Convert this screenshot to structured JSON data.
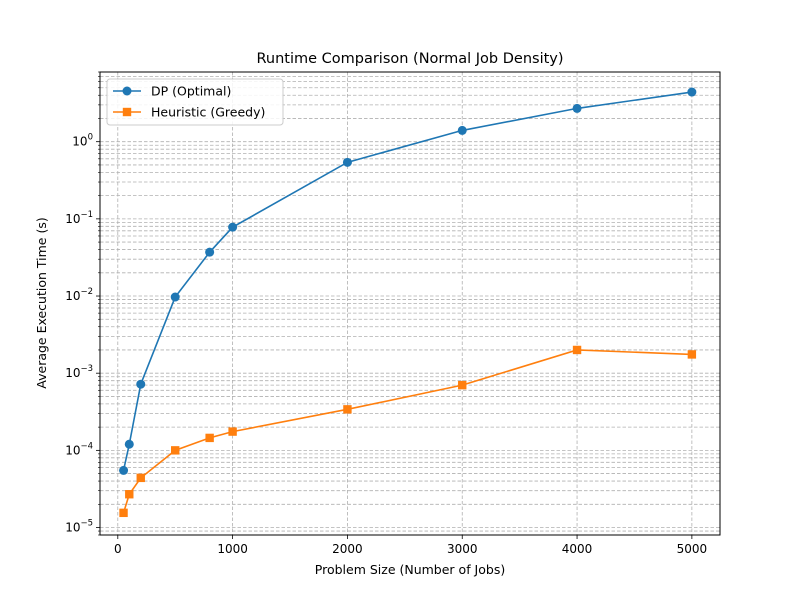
{
  "chart_data": {
    "type": "line",
    "title": "Runtime Comparison (Normal Job Density)",
    "xlabel": "Problem Size (Number of Jobs)",
    "ylabel": "Average Execution Time (s)",
    "y_scale": "log",
    "xlim": [
      -155,
      5245
    ],
    "ylim": [
      8e-06,
      8.0
    ],
    "x_ticks": [
      0,
      1000,
      2000,
      3000,
      4000,
      5000
    ],
    "x_tick_labels": [
      "0",
      "1000",
      "2000",
      "3000",
      "4000",
      "5000"
    ],
    "y_ticks": [
      1e-05,
      0.0001,
      0.001,
      0.01,
      0.1,
      1
    ],
    "y_tick_labels": [
      {
        "base": "10",
        "exp": "−5"
      },
      {
        "base": "10",
        "exp": "−4"
      },
      {
        "base": "10",
        "exp": "−3"
      },
      {
        "base": "10",
        "exp": "−2"
      },
      {
        "base": "10",
        "exp": "−1"
      },
      {
        "base": "10",
        "exp": "0"
      }
    ],
    "grid": true,
    "grid_style": "dashed, major and minor",
    "legend_position": "top-left",
    "x": [
      50,
      100,
      200,
      500,
      800,
      1000,
      2000,
      3000,
      4000,
      5000
    ],
    "series": [
      {
        "name": "DP (Optimal)",
        "color": "#1f77b4",
        "marker": "circle",
        "values": [
          5.5e-05,
          0.00012,
          0.00072,
          0.0097,
          0.037,
          0.078,
          0.54,
          1.4,
          2.7,
          4.4
        ]
      },
      {
        "name": "Heuristic (Greedy)",
        "color": "#ff7f0e",
        "marker": "square",
        "values": [
          1.55e-05,
          2.7e-05,
          4.4e-05,
          0.0001,
          0.000145,
          0.000175,
          0.00034,
          0.0007,
          0.002,
          0.00175
        ]
      }
    ]
  }
}
